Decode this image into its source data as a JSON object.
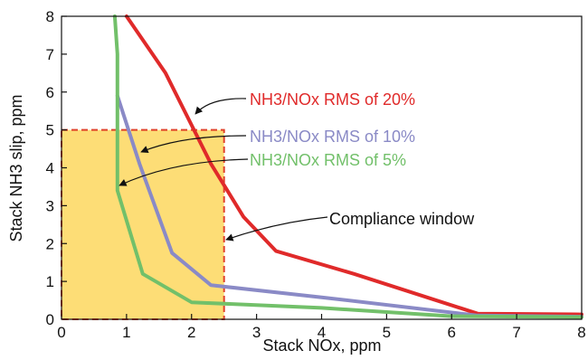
{
  "chart_data": {
    "type": "line",
    "xlabel": "Stack NOx, ppm",
    "ylabel": "Stack NH3 slip, ppm",
    "xlim": [
      0,
      8
    ],
    "ylim": [
      0,
      8
    ],
    "x_ticks": [
      0,
      1,
      2,
      3,
      4,
      5,
      6,
      7,
      8
    ],
    "y_ticks": [
      0,
      1,
      2,
      3,
      4,
      5,
      6,
      7,
      8
    ],
    "grid": false,
    "legend": "none",
    "compliance_window": {
      "label": "Compliance window",
      "x": [
        0,
        2.5
      ],
      "y": [
        0,
        5
      ],
      "fill": "#fddd76",
      "border": "#e0402a"
    },
    "series": [
      {
        "name": "NH3/NOx RMS of 20%",
        "color": "#e02a2a",
        "points": [
          [
            1.0,
            8.0
          ],
          [
            1.6,
            6.5
          ],
          [
            2.3,
            4.1
          ],
          [
            2.8,
            2.7
          ],
          [
            3.3,
            1.8
          ],
          [
            4.5,
            1.2
          ],
          [
            6.4,
            0.15
          ],
          [
            8.0,
            0.13
          ]
        ]
      },
      {
        "name": "NH3/NOx RMS of 10%",
        "color": "#8a8ac6",
        "points": [
          [
            0.86,
            5.9
          ],
          [
            1.2,
            4.1
          ],
          [
            1.7,
            1.75
          ],
          [
            2.3,
            0.9
          ],
          [
            4.0,
            0.58
          ],
          [
            6.4,
            0.1
          ],
          [
            8.0,
            0.07
          ]
        ]
      },
      {
        "name": "NH3/NOx RMS of 5%",
        "color": "#72c06a",
        "points": [
          [
            0.82,
            8.0
          ],
          [
            0.86,
            7.0
          ],
          [
            0.86,
            3.4
          ],
          [
            1.25,
            1.2
          ],
          [
            2.0,
            0.45
          ],
          [
            4.0,
            0.3
          ],
          [
            6.0,
            0.08
          ],
          [
            8.0,
            0.06
          ]
        ]
      }
    ],
    "annotations": [
      {
        "text": "NH3/NOx RMS of 20%",
        "color": "#e02a2a"
      },
      {
        "text": "NH3/NOx RMS of 10%",
        "color": "#8a8ac6"
      },
      {
        "text": "NH3/NOx RMS of 5%",
        "color": "#72c06a"
      },
      {
        "text": "Compliance window",
        "color": "#111111"
      }
    ]
  }
}
